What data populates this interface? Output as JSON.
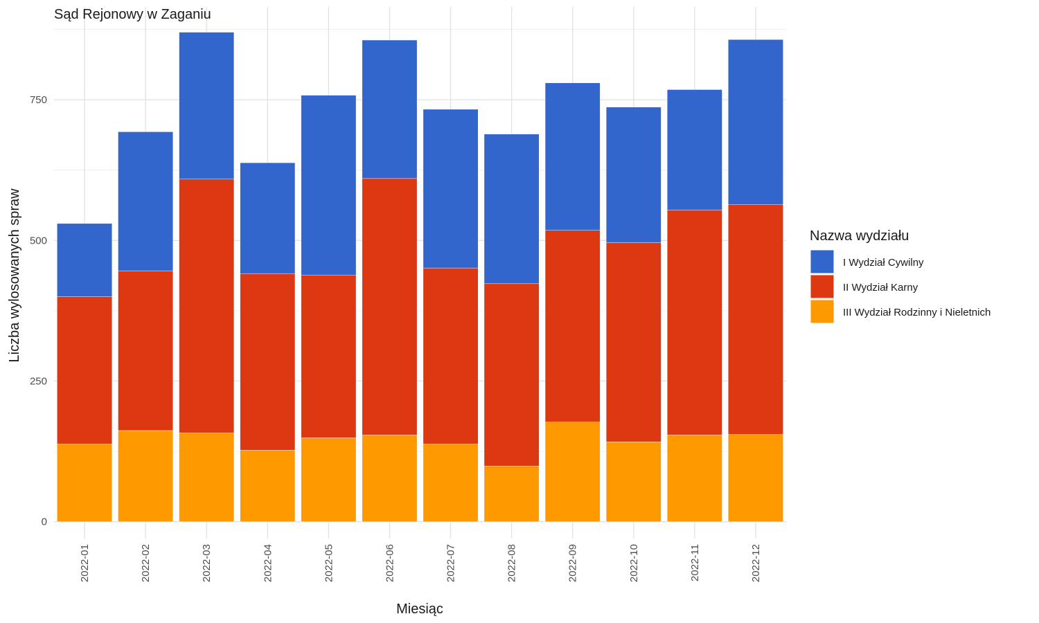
{
  "chart_data": {
    "type": "bar",
    "stacked": true,
    "title": "Sąd Rejonowy w Zaganiu",
    "xlabel": "Miesiąc",
    "ylabel": "Liczba wylosowanych spraw",
    "categories": [
      "2022-01",
      "2022-02",
      "2022-03",
      "2022-04",
      "2022-05",
      "2022-06",
      "2022-07",
      "2022-08",
      "2022-09",
      "2022-10",
      "2022-11",
      "2022-12"
    ],
    "ylim": [
      -30,
      915
    ],
    "yticks": [
      0,
      250,
      500,
      750
    ],
    "grid": true,
    "legend": {
      "title": "Nazwa wydziału",
      "position": "right"
    },
    "series": [
      {
        "name": "III Wydział Rodzinny i Nieletnich",
        "color": "#FF9900",
        "values": [
          138,
          162,
          158,
          127,
          149,
          154,
          138,
          99,
          177,
          142,
          154,
          155
        ]
      },
      {
        "name": "II Wydział Karny",
        "color": "#DC3912",
        "values": [
          262,
          284,
          451,
          314,
          289,
          456,
          313,
          324,
          341,
          354,
          400,
          409
        ]
      },
      {
        "name": "I Wydział Cywilny",
        "color": "#3366CC",
        "values": [
          130,
          247,
          261,
          197,
          320,
          246,
          282,
          266,
          262,
          241,
          214,
          293
        ]
      }
    ]
  }
}
